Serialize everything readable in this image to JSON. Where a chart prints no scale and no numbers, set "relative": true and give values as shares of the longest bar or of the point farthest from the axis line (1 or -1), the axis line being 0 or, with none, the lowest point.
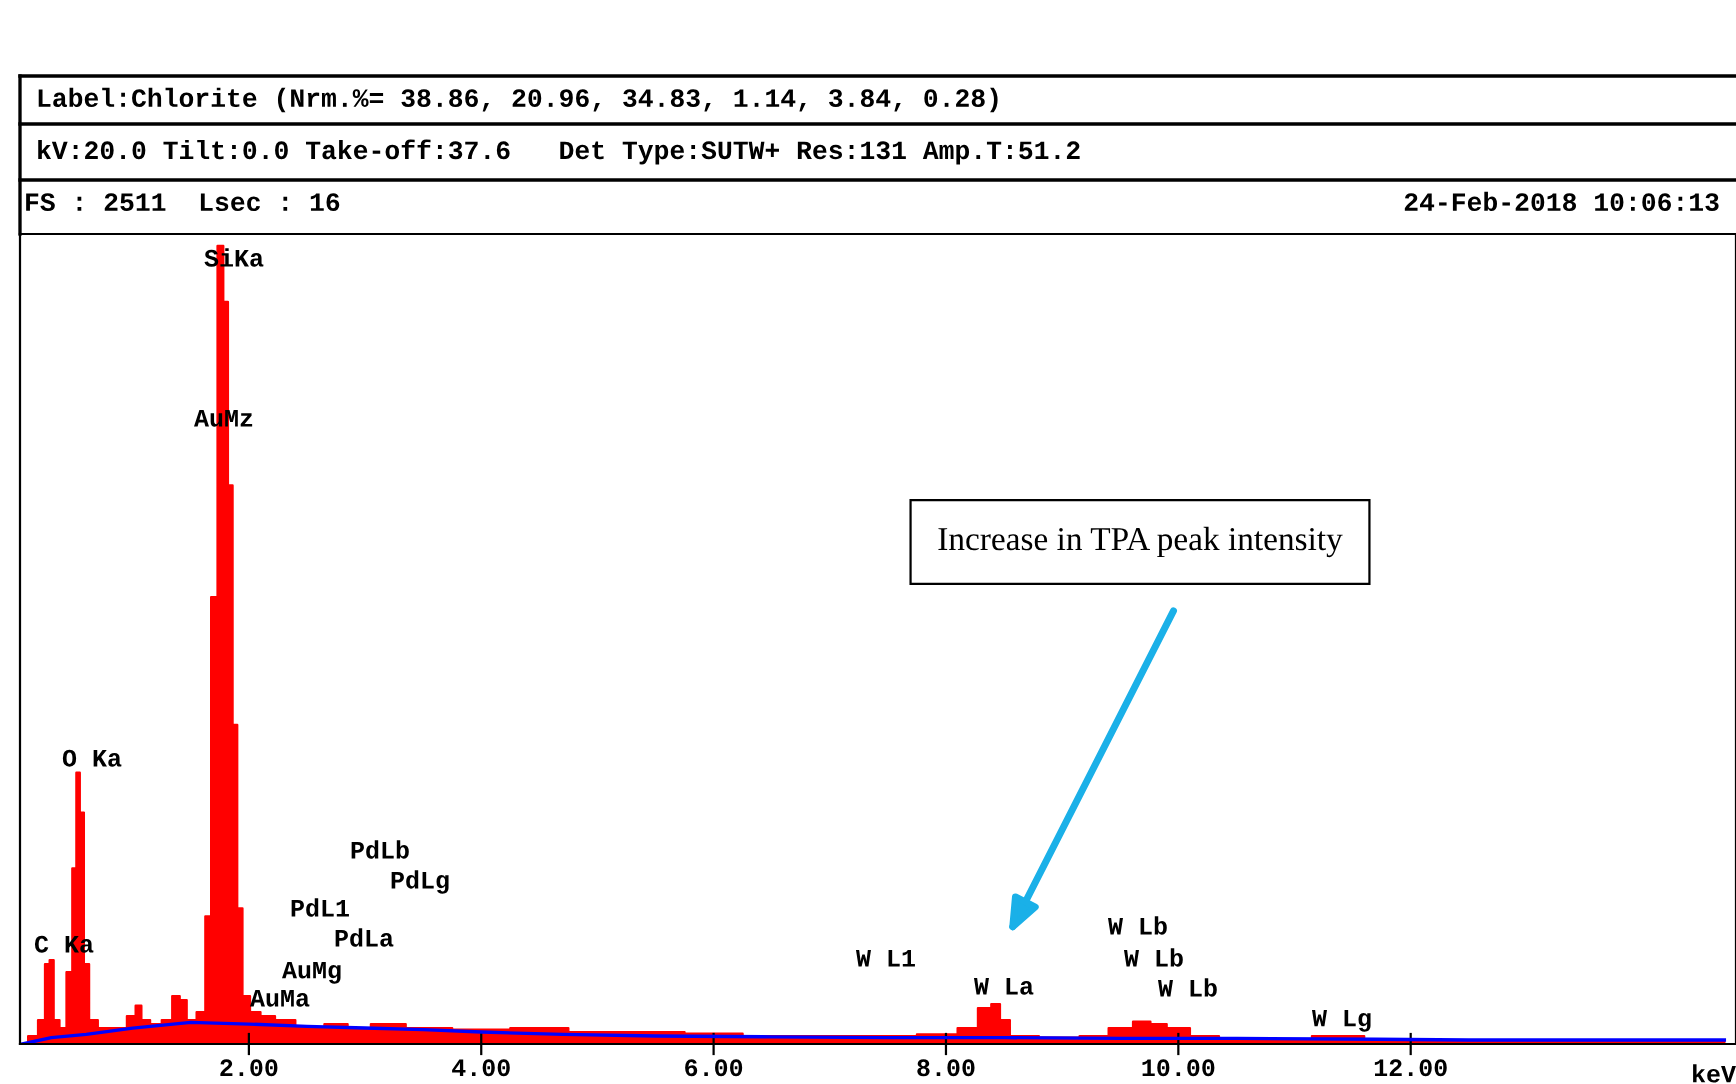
{
  "chart_data": {
    "type": "area",
    "relative": true,
    "title": "Label:Chlorite (Nrm.%= 38.86, 20.96, 34.83, 1.14, 3.84, 0.28)",
    "subtitle": "kV:20.0 Tilt:0.0 Take-off:37.6   Det Type:SUTW+ Res:131 Amp.T:51.2",
    "xlabel": "keV",
    "xlim": [
      0.03,
      14.8
    ],
    "xticks": [
      {
        "value": 2,
        "label": "2.00"
      },
      {
        "value": 4,
        "label": "4.00"
      },
      {
        "value": 6,
        "label": "6.00"
      },
      {
        "value": 8,
        "label": "8.00"
      },
      {
        "value": 10,
        "label": "10.00"
      },
      {
        "value": 12,
        "label": "12.00"
      }
    ],
    "grid": false,
    "legend": false,
    "series": [
      {
        "color": "#ff0000",
        "x": [
          0.05,
          0.15,
          0.22,
          0.27,
          0.3,
          0.34,
          0.4,
          0.46,
          0.5,
          0.53,
          0.56,
          0.6,
          0.65,
          0.75,
          0.9,
          1.0,
          1.05,
          1.1,
          1.2,
          1.3,
          1.38,
          1.43,
          1.5,
          1.6,
          1.65,
          1.7,
          1.76,
          1.8,
          1.84,
          1.88,
          1.92,
          1.97,
          2.05,
          2.15,
          2.3,
          2.5,
          2.8,
          2.9,
          3.2,
          3.5,
          4.0,
          4.5,
          5.0,
          5.5,
          6.0,
          6.5,
          7.0,
          7.5,
          8.0,
          8.2,
          8.35,
          8.43,
          8.5,
          8.6,
          9.0,
          9.3,
          9.5,
          9.72,
          9.8,
          10.0,
          10.2,
          10.5,
          11.0,
          11.3,
          11.5,
          11.7,
          12.5,
          13.5,
          14.7
        ],
        "values": [
          0.0,
          0.01,
          0.03,
          0.1,
          0.105,
          0.03,
          0.02,
          0.09,
          0.22,
          0.34,
          0.29,
          0.1,
          0.03,
          0.02,
          0.02,
          0.035,
          0.048,
          0.03,
          0.025,
          0.03,
          0.06,
          0.055,
          0.03,
          0.04,
          0.16,
          0.56,
          1.0,
          0.93,
          0.7,
          0.4,
          0.17,
          0.06,
          0.04,
          0.035,
          0.03,
          0.02,
          0.025,
          0.02,
          0.025,
          0.02,
          0.018,
          0.02,
          0.015,
          0.015,
          0.013,
          0.01,
          0.01,
          0.01,
          0.012,
          0.02,
          0.045,
          0.05,
          0.03,
          0.01,
          0.008,
          0.01,
          0.02,
          0.028,
          0.025,
          0.02,
          0.01,
          0.006,
          0.005,
          0.01,
          0.01,
          0.004,
          0.003,
          0.003,
          0.003
        ]
      },
      {
        "type": "line",
        "color": "#0000ff",
        "x": [
          0.05,
          0.3,
          0.6,
          1.0,
          1.5,
          2.0,
          2.5,
          3.0,
          3.5,
          4.0,
          4.7,
          5.5,
          6.5,
          7.5,
          8.5,
          9.5,
          10.5,
          11.7,
          12.5,
          14.7
        ],
        "values": [
          0.0,
          0.008,
          0.012,
          0.02,
          0.027,
          0.025,
          0.022,
          0.02,
          0.018,
          0.015,
          0.012,
          0.01,
          0.009,
          0.008,
          0.008,
          0.007,
          0.007,
          0.006,
          0.005,
          0.005
        ]
      }
    ],
    "annotations": [
      "FS : 2511  Lsec : 16",
      "24-Feb-2018 10:06:13",
      "SiKa",
      "AuMz",
      "O Ka",
      "C Ka",
      "PdLb",
      "PdLg",
      "PdL1",
      "PdLa",
      "AuMg",
      "AuMa",
      "W L1",
      "W La",
      "W Lb",
      "W Lb",
      "W Lb",
      "W Lg",
      "Increase in TPA peak intensity"
    ]
  }
}
